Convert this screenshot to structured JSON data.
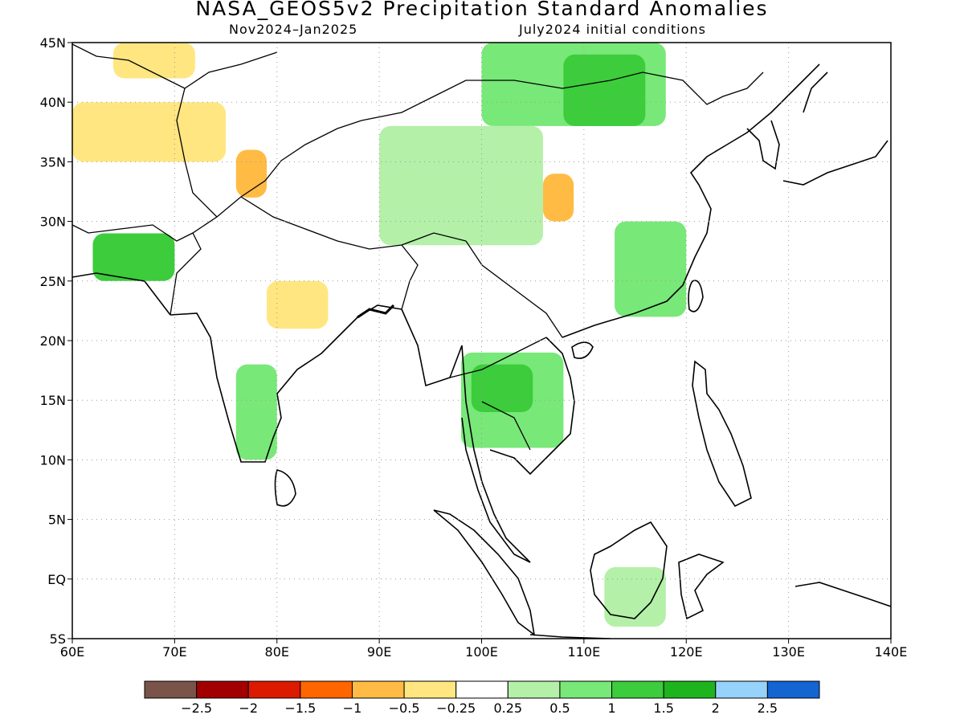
{
  "title": "NASA_GEOS5v2 Precipitation Standard Anomalies",
  "subtitle_left": "Nov2024–Jan2025",
  "subtitle_right": "July2024 initial conditions",
  "lon_ticks": [
    "60E",
    "70E",
    "80E",
    "90E",
    "100E",
    "110E",
    "120E",
    "130E",
    "140E"
  ],
  "lat_ticks": [
    "45N",
    "40N",
    "35N",
    "30N",
    "25N",
    "20N",
    "15N",
    "10N",
    "5N",
    "EQ",
    "5S"
  ],
  "colorbar": {
    "colors": [
      "#7a5449",
      "#a20000",
      "#dc1a00",
      "#ff6600",
      "#ffbb44",
      "#ffe680",
      "#ffffff",
      "#b4f0a8",
      "#78e878",
      "#3ccc3c",
      "#1eb41e",
      "#96d2fa",
      "#1464d2"
    ],
    "labels": [
      "−2.5",
      "−2",
      "−1.5",
      "−1",
      "−0.5",
      "−0.25",
      "0.25",
      "0.5",
      "1",
      "1.5",
      "2",
      "2.5"
    ]
  },
  "regions": [
    {
      "name": "mongolia-north-china-wet",
      "color": "#78e878",
      "lon": [
        100,
        118
      ],
      "lat": [
        38,
        45
      ]
    },
    {
      "name": "inner-mongolia-strong-wet",
      "color": "#3ccc3c",
      "lon": [
        108,
        116
      ],
      "lat": [
        38,
        44
      ]
    },
    {
      "name": "tibet-wet",
      "color": "#b4f0a8",
      "lon": [
        90,
        106
      ],
      "lat": [
        28,
        38
      ]
    },
    {
      "name": "south-china-wet",
      "color": "#78e878",
      "lon": [
        113,
        120
      ],
      "lat": [
        22,
        30
      ]
    },
    {
      "name": "indochina-wet",
      "color": "#78e878",
      "lon": [
        98,
        108
      ],
      "lat": [
        11,
        19
      ]
    },
    {
      "name": "thailand-strong-wet",
      "color": "#3ccc3c",
      "lon": [
        99,
        105
      ],
      "lat": [
        14,
        18
      ]
    },
    {
      "name": "pakistan-strong-wet",
      "color": "#3ccc3c",
      "lon": [
        62,
        70
      ],
      "lat": [
        25,
        29
      ]
    },
    {
      "name": "south-india-wet",
      "color": "#78e878",
      "lon": [
        76,
        80
      ],
      "lat": [
        10,
        18
      ]
    },
    {
      "name": "borneo-wet",
      "color": "#b4f0a8",
      "lon": [
        112,
        118
      ],
      "lat": [
        -4,
        1
      ]
    },
    {
      "name": "kashmir-dry",
      "color": "#ffbb44",
      "lon": [
        76,
        79
      ],
      "lat": [
        32,
        36
      ]
    },
    {
      "name": "central-china-dry",
      "color": "#ffbb44",
      "lon": [
        106,
        109
      ],
      "lat": [
        30,
        34
      ]
    },
    {
      "name": "india-dry",
      "color": "#ffe680",
      "lon": [
        79,
        85
      ],
      "lat": [
        21,
        25
      ]
    },
    {
      "name": "central-asia-dry",
      "color": "#ffe680",
      "lon": [
        60,
        75
      ],
      "lat": [
        35,
        40
      ]
    },
    {
      "name": "kazakh-dry",
      "color": "#ffe680",
      "lon": [
        64,
        72
      ],
      "lat": [
        42,
        45
      ]
    }
  ]
}
